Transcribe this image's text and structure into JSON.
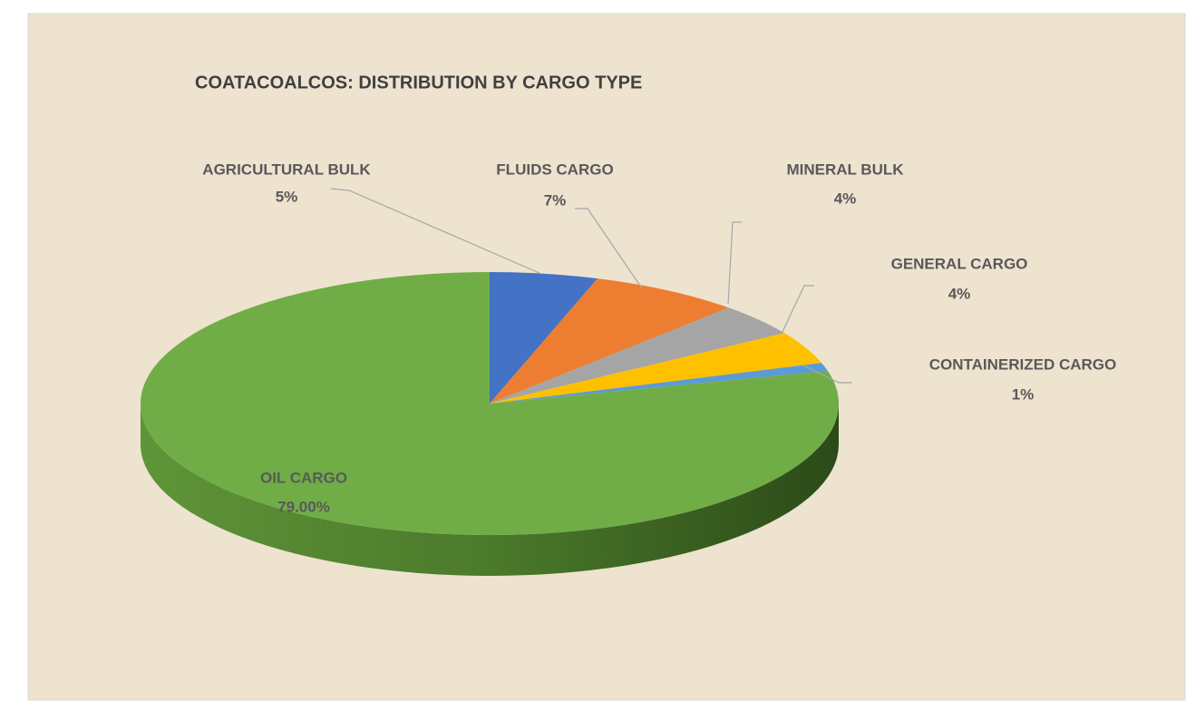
{
  "chart_data": {
    "type": "pie",
    "title": "COATACOALCOS: DISTRIBUTION BY CARGO TYPE",
    "categories": [
      "AGRICULTURAL BULK",
      "FLUIDS CARGO",
      "MINERAL BULK",
      "GENERAL CARGO",
      "CONTAINERIZED CARGO",
      "OIL CARGO"
    ],
    "values": [
      5,
      7,
      4,
      4,
      1,
      79
    ],
    "value_labels": [
      "5%",
      "7%",
      "4%",
      "4%",
      "1%",
      "79.00%"
    ],
    "colors": [
      "#4472c4",
      "#ed7d31",
      "#a5a5a5",
      "#ffc000",
      "#5b9bd5",
      "#70ad47"
    ]
  }
}
